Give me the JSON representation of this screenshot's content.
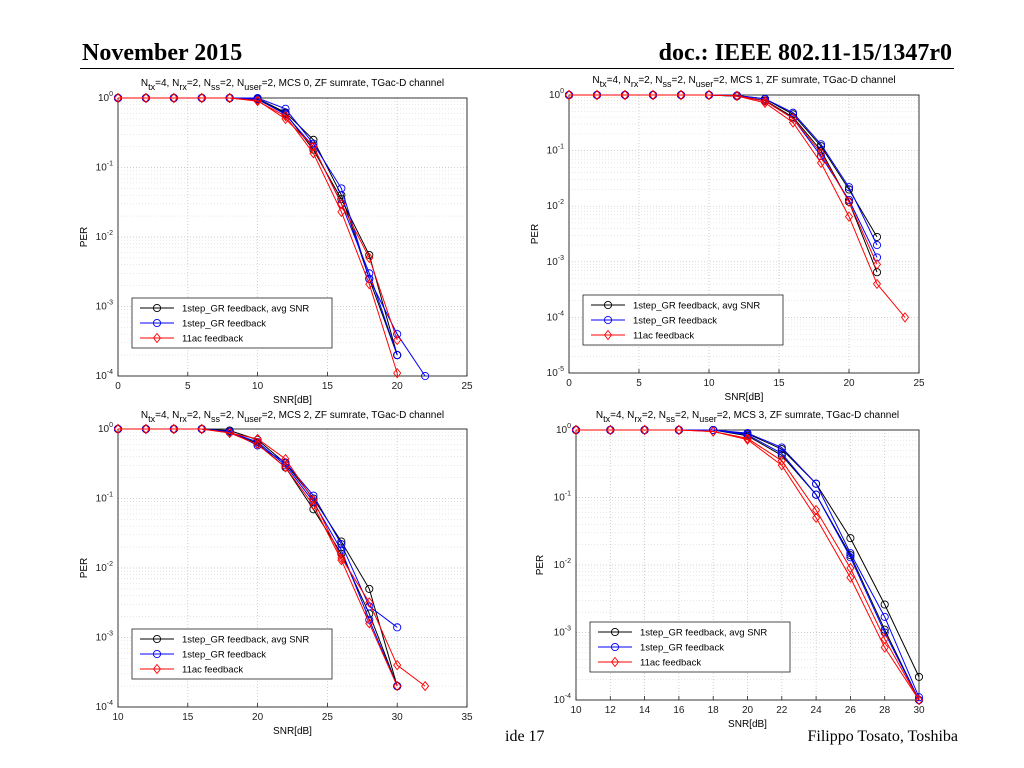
{
  "header": {
    "date": "November 2015",
    "doc": "doc.: IEEE 802.11-15/1347r0"
  },
  "footer": {
    "page": "ide 17",
    "author": "Filippo Tosato, Toshiba"
  },
  "chart_data": [
    {
      "type": "line",
      "title_parts": [
        [
          "N",
          ""
        ],
        [
          "tx",
          "sub"
        ],
        [
          "=4, N",
          ""
        ],
        [
          "rx",
          "sub"
        ],
        [
          "=2, N",
          ""
        ],
        [
          "ss",
          "sub"
        ],
        [
          "=2, N",
          ""
        ],
        [
          "user",
          "sub"
        ],
        [
          "=2, MCS 0, ZF sumrate, TGac-D channel",
          ""
        ]
      ],
      "xlabel": "SNR[dB]",
      "ylabel": "PER",
      "xlim": [
        0,
        25
      ],
      "xticks": [
        0,
        5,
        10,
        15,
        20,
        25
      ],
      "ylog": true,
      "ylim_exp": [
        -4,
        0
      ],
      "grid": true,
      "legend_position": "bottom-left",
      "legend": [
        "1step_GR feedback, avg SNR",
        "1step_GR feedback",
        "11ac feedback"
      ],
      "series": [
        {
          "name": "1step_GR feedback, avg SNR",
          "color": "#000000",
          "marker": "circle",
          "x": [
            0,
            2,
            4,
            6,
            8,
            10,
            12,
            14,
            16,
            18,
            20
          ],
          "y": [
            1,
            1,
            1,
            1,
            1,
            0.95,
            0.6,
            0.18,
            0.035,
            0.0055,
            0.0002
          ]
        },
        {
          "name": "1step_GR feedback, avg SNR",
          "color": "#000000",
          "marker": "circle",
          "x": [
            0,
            2,
            4,
            6,
            8,
            10,
            12,
            14,
            16,
            18,
            20
          ],
          "y": [
            1,
            1,
            1,
            1,
            1,
            0.98,
            0.62,
            0.25,
            0.04,
            0.0025,
            0.0002
          ]
        },
        {
          "name": "1step_GR feedback",
          "color": "#0000ff",
          "marker": "circle",
          "x": [
            0,
            2,
            4,
            6,
            8,
            10,
            12,
            14,
            16,
            18,
            20,
            22
          ],
          "y": [
            1,
            1,
            1,
            1,
            1,
            1,
            0.7,
            0.22,
            0.05,
            0.0025,
            0.0004,
            0.0001
          ]
        },
        {
          "name": "1step_GR feedback",
          "color": "#0000ff",
          "marker": "circle",
          "x": [
            0,
            2,
            4,
            6,
            8,
            10,
            12,
            14,
            16,
            18,
            20
          ],
          "y": [
            1,
            1,
            1,
            1,
            1,
            0.96,
            0.58,
            0.2,
            0.03,
            0.003,
            0.0002
          ]
        },
        {
          "name": "11ac feedback",
          "color": "#ff0000",
          "marker": "diamond",
          "x": [
            0,
            2,
            4,
            6,
            8,
            10,
            12,
            14,
            16,
            18,
            20
          ],
          "y": [
            1,
            1,
            1,
            1,
            1,
            0.9,
            0.55,
            0.16,
            0.023,
            0.0021,
            0.00011
          ]
        },
        {
          "name": "11ac feedback",
          "color": "#ff0000",
          "marker": "diamond",
          "x": [
            0,
            2,
            4,
            6,
            8,
            10,
            12,
            14,
            16,
            18,
            20
          ],
          "y": [
            1,
            1,
            1,
            1,
            1,
            0.92,
            0.5,
            0.2,
            0.03,
            0.005,
            0.00033
          ]
        }
      ]
    },
    {
      "type": "line",
      "title_parts": [
        [
          "N",
          ""
        ],
        [
          "tx",
          "sub"
        ],
        [
          "=4, N",
          ""
        ],
        [
          "rx",
          "sub"
        ],
        [
          "=2, N",
          ""
        ],
        [
          "ss",
          "sub"
        ],
        [
          "=2, N",
          ""
        ],
        [
          "user",
          "sub"
        ],
        [
          "=2, MCS 1, ZF sumrate, TGac-D channel",
          ""
        ]
      ],
      "xlabel": "SNR[dB]",
      "ylabel": "PER",
      "xlim": [
        0,
        25
      ],
      "xticks": [
        0,
        5,
        10,
        15,
        20,
        25
      ],
      "ylog": true,
      "ylim_exp": [
        -5,
        0
      ],
      "grid": true,
      "legend_position": "bottom-left",
      "legend": [
        "1step_GR feedback, avg SNR",
        "1step_GR feedback",
        "11ac feedback"
      ],
      "series": [
        {
          "name": "1step_GR feedback, avg SNR",
          "color": "#000000",
          "marker": "circle",
          "x": [
            0,
            2,
            4,
            6,
            8,
            10,
            12,
            14,
            16,
            18,
            20,
            22
          ],
          "y": [
            1,
            1,
            1,
            1,
            1,
            1,
            0.98,
            0.85,
            0.45,
            0.12,
            0.02,
            0.0028
          ]
        },
        {
          "name": "1step_GR feedback, avg SNR",
          "color": "#000000",
          "marker": "circle",
          "x": [
            0,
            2,
            4,
            6,
            8,
            10,
            12,
            14,
            16,
            18,
            20,
            22
          ],
          "y": [
            1,
            1,
            1,
            1,
            1,
            1,
            0.95,
            0.8,
            0.4,
            0.1,
            0.012,
            0.00065
          ]
        },
        {
          "name": "1step_GR feedback",
          "color": "#0000ff",
          "marker": "circle",
          "x": [
            0,
            2,
            4,
            6,
            8,
            10,
            12,
            14,
            16,
            18,
            20,
            22
          ],
          "y": [
            1,
            1,
            1,
            1,
            1,
            1,
            0.98,
            0.85,
            0.48,
            0.13,
            0.022,
            0.002
          ]
        },
        {
          "name": "1step_GR feedback",
          "color": "#0000ff",
          "marker": "circle",
          "x": [
            0,
            2,
            4,
            6,
            8,
            10,
            12,
            14,
            16,
            18,
            20,
            22
          ],
          "y": [
            1,
            1,
            1,
            1,
            1,
            1,
            0.96,
            0.78,
            0.38,
            0.08,
            0.013,
            0.0012
          ]
        },
        {
          "name": "11ac feedback",
          "color": "#ff0000",
          "marker": "diamond",
          "x": [
            0,
            2,
            4,
            6,
            8,
            10,
            12,
            14,
            16,
            18,
            20,
            22,
            24
          ],
          "y": [
            1,
            1,
            1,
            1,
            1,
            1,
            0.96,
            0.72,
            0.32,
            0.06,
            0.0065,
            0.0004,
            0.0001
          ]
        },
        {
          "name": "11ac feedback",
          "color": "#ff0000",
          "marker": "diamond",
          "x": [
            0,
            2,
            4,
            6,
            8,
            10,
            12,
            14,
            16,
            18,
            20,
            22
          ],
          "y": [
            1,
            1,
            1,
            1,
            1,
            1,
            0.97,
            0.78,
            0.38,
            0.09,
            0.012,
            0.0009
          ]
        }
      ]
    },
    {
      "type": "line",
      "title_parts": [
        [
          "N",
          ""
        ],
        [
          "tx",
          "sub"
        ],
        [
          "=4, N",
          ""
        ],
        [
          "rx",
          "sub"
        ],
        [
          "=2, N",
          ""
        ],
        [
          "ss",
          "sub"
        ],
        [
          "=2, N",
          ""
        ],
        [
          "user",
          "sub"
        ],
        [
          "=2, MCS 2, ZF sumrate, TGac-D channel",
          ""
        ]
      ],
      "xlabel": "SNR[dB]",
      "ylabel": "PER",
      "xlim": [
        10,
        35
      ],
      "xticks": [
        10,
        15,
        20,
        25,
        30,
        35
      ],
      "ylog": true,
      "ylim_exp": [
        -4,
        0
      ],
      "grid": true,
      "legend_position": "bottom-left",
      "legend": [
        "1step_GR feedback, avg SNR",
        "1step_GR feedback",
        "11ac feedback"
      ],
      "series": [
        {
          "name": "1step_GR feedback, avg SNR",
          "color": "#000000",
          "marker": "circle",
          "x": [
            10,
            12,
            14,
            16,
            18,
            20,
            22,
            24,
            26,
            28,
            30
          ],
          "y": [
            1,
            1,
            1,
            1,
            0.95,
            0.7,
            0.32,
            0.1,
            0.024,
            0.005,
            0.0002
          ]
        },
        {
          "name": "1step_GR feedback, avg SNR",
          "color": "#000000",
          "marker": "circle",
          "x": [
            10,
            12,
            14,
            16,
            18,
            20,
            22,
            24,
            26,
            28,
            30
          ],
          "y": [
            1,
            1,
            1,
            1,
            0.9,
            0.62,
            0.28,
            0.07,
            0.016,
            0.0022,
            0.0002
          ]
        },
        {
          "name": "1step_GR feedback",
          "color": "#0000ff",
          "marker": "circle",
          "x": [
            10,
            12,
            14,
            16,
            18,
            20,
            22,
            24,
            26,
            28,
            30
          ],
          "y": [
            1,
            1,
            1,
            1,
            0.92,
            0.58,
            0.33,
            0.11,
            0.022,
            0.0028,
            0.0014
          ]
        },
        {
          "name": "1step_GR feedback",
          "color": "#0000ff",
          "marker": "circle",
          "x": [
            10,
            12,
            14,
            16,
            18,
            20,
            22,
            24,
            26,
            28,
            30
          ],
          "y": [
            1,
            1,
            1,
            1,
            0.9,
            0.65,
            0.3,
            0.09,
            0.018,
            0.0018,
            0.0002
          ]
        },
        {
          "name": "11ac feedback",
          "color": "#ff0000",
          "marker": "diamond",
          "x": [
            10,
            12,
            14,
            16,
            18,
            20,
            22,
            24,
            26,
            28,
            30,
            32
          ],
          "y": [
            1,
            1,
            1,
            1,
            0.88,
            0.72,
            0.37,
            0.095,
            0.014,
            0.0032,
            0.0004,
            0.0002
          ]
        },
        {
          "name": "11ac feedback",
          "color": "#ff0000",
          "marker": "diamond",
          "x": [
            10,
            12,
            14,
            16,
            18,
            20,
            22,
            24,
            26,
            28,
            30
          ],
          "y": [
            1,
            1,
            1,
            1,
            0.88,
            0.6,
            0.28,
            0.08,
            0.013,
            0.0016,
            0.0002
          ]
        }
      ]
    },
    {
      "type": "line",
      "title_parts": [
        [
          "N",
          ""
        ],
        [
          "tx",
          "sub"
        ],
        [
          "=4, N",
          ""
        ],
        [
          "rx",
          "sub"
        ],
        [
          "=2, N",
          ""
        ],
        [
          "ss",
          "sub"
        ],
        [
          "=2, N",
          ""
        ],
        [
          "user",
          "sub"
        ],
        [
          "=2, MCS 3, ZF sumrate, TGac-D channel",
          ""
        ]
      ],
      "xlabel": "SNR[dB]",
      "ylabel": "PER",
      "xlim": [
        10,
        30
      ],
      "xticks": [
        10,
        12,
        14,
        16,
        18,
        20,
        22,
        24,
        26,
        28,
        30
      ],
      "ylog": true,
      "ylim_exp": [
        -4,
        0
      ],
      "grid": true,
      "legend_position": "bottom-left",
      "legend": [
        "1step_GR feedback, avg SNR",
        "1step_GR feedback",
        "11ac feedback"
      ],
      "series": [
        {
          "name": "1step_GR feedback, avg SNR",
          "color": "#000000",
          "marker": "circle",
          "x": [
            10,
            12,
            14,
            16,
            18,
            20,
            22,
            24,
            26,
            28,
            30
          ],
          "y": [
            1,
            1,
            1,
            1,
            1,
            0.88,
            0.52,
            0.16,
            0.025,
            0.0026,
            0.00022
          ]
        },
        {
          "name": "1step_GR feedback, avg SNR",
          "color": "#000000",
          "marker": "circle",
          "x": [
            10,
            12,
            14,
            16,
            18,
            20,
            22,
            24,
            26,
            28,
            30
          ],
          "y": [
            1,
            1,
            1,
            1,
            1,
            0.82,
            0.42,
            0.11,
            0.014,
            0.0011,
            0.0001
          ]
        },
        {
          "name": "1step_GR feedback",
          "color": "#0000ff",
          "marker": "circle",
          "x": [
            10,
            12,
            14,
            16,
            18,
            20,
            22,
            24,
            26,
            28,
            30
          ],
          "y": [
            1,
            1,
            1,
            1,
            1,
            0.9,
            0.55,
            0.16,
            0.015,
            0.0017,
            0.00011
          ]
        },
        {
          "name": "1step_GR feedback",
          "color": "#0000ff",
          "marker": "circle",
          "x": [
            10,
            12,
            14,
            16,
            18,
            20,
            22,
            24,
            26,
            28,
            30
          ],
          "y": [
            1,
            1,
            1,
            1,
            1,
            0.85,
            0.45,
            0.11,
            0.013,
            0.001,
            0.0001
          ]
        },
        {
          "name": "11ac feedback",
          "color": "#ff0000",
          "marker": "diamond",
          "x": [
            10,
            12,
            14,
            16,
            18,
            20,
            22,
            24,
            26,
            28,
            30
          ],
          "y": [
            1,
            1,
            1,
            1,
            0.95,
            0.75,
            0.35,
            0.065,
            0.009,
            0.0008,
            0.0001
          ]
        },
        {
          "name": "11ac feedback",
          "color": "#ff0000",
          "marker": "diamond",
          "x": [
            10,
            12,
            14,
            16,
            18,
            20,
            22,
            24,
            26,
            28,
            30
          ],
          "y": [
            1,
            1,
            1,
            1,
            0.95,
            0.72,
            0.3,
            0.05,
            0.0065,
            0.0006,
            0.0001
          ]
        }
      ]
    }
  ]
}
